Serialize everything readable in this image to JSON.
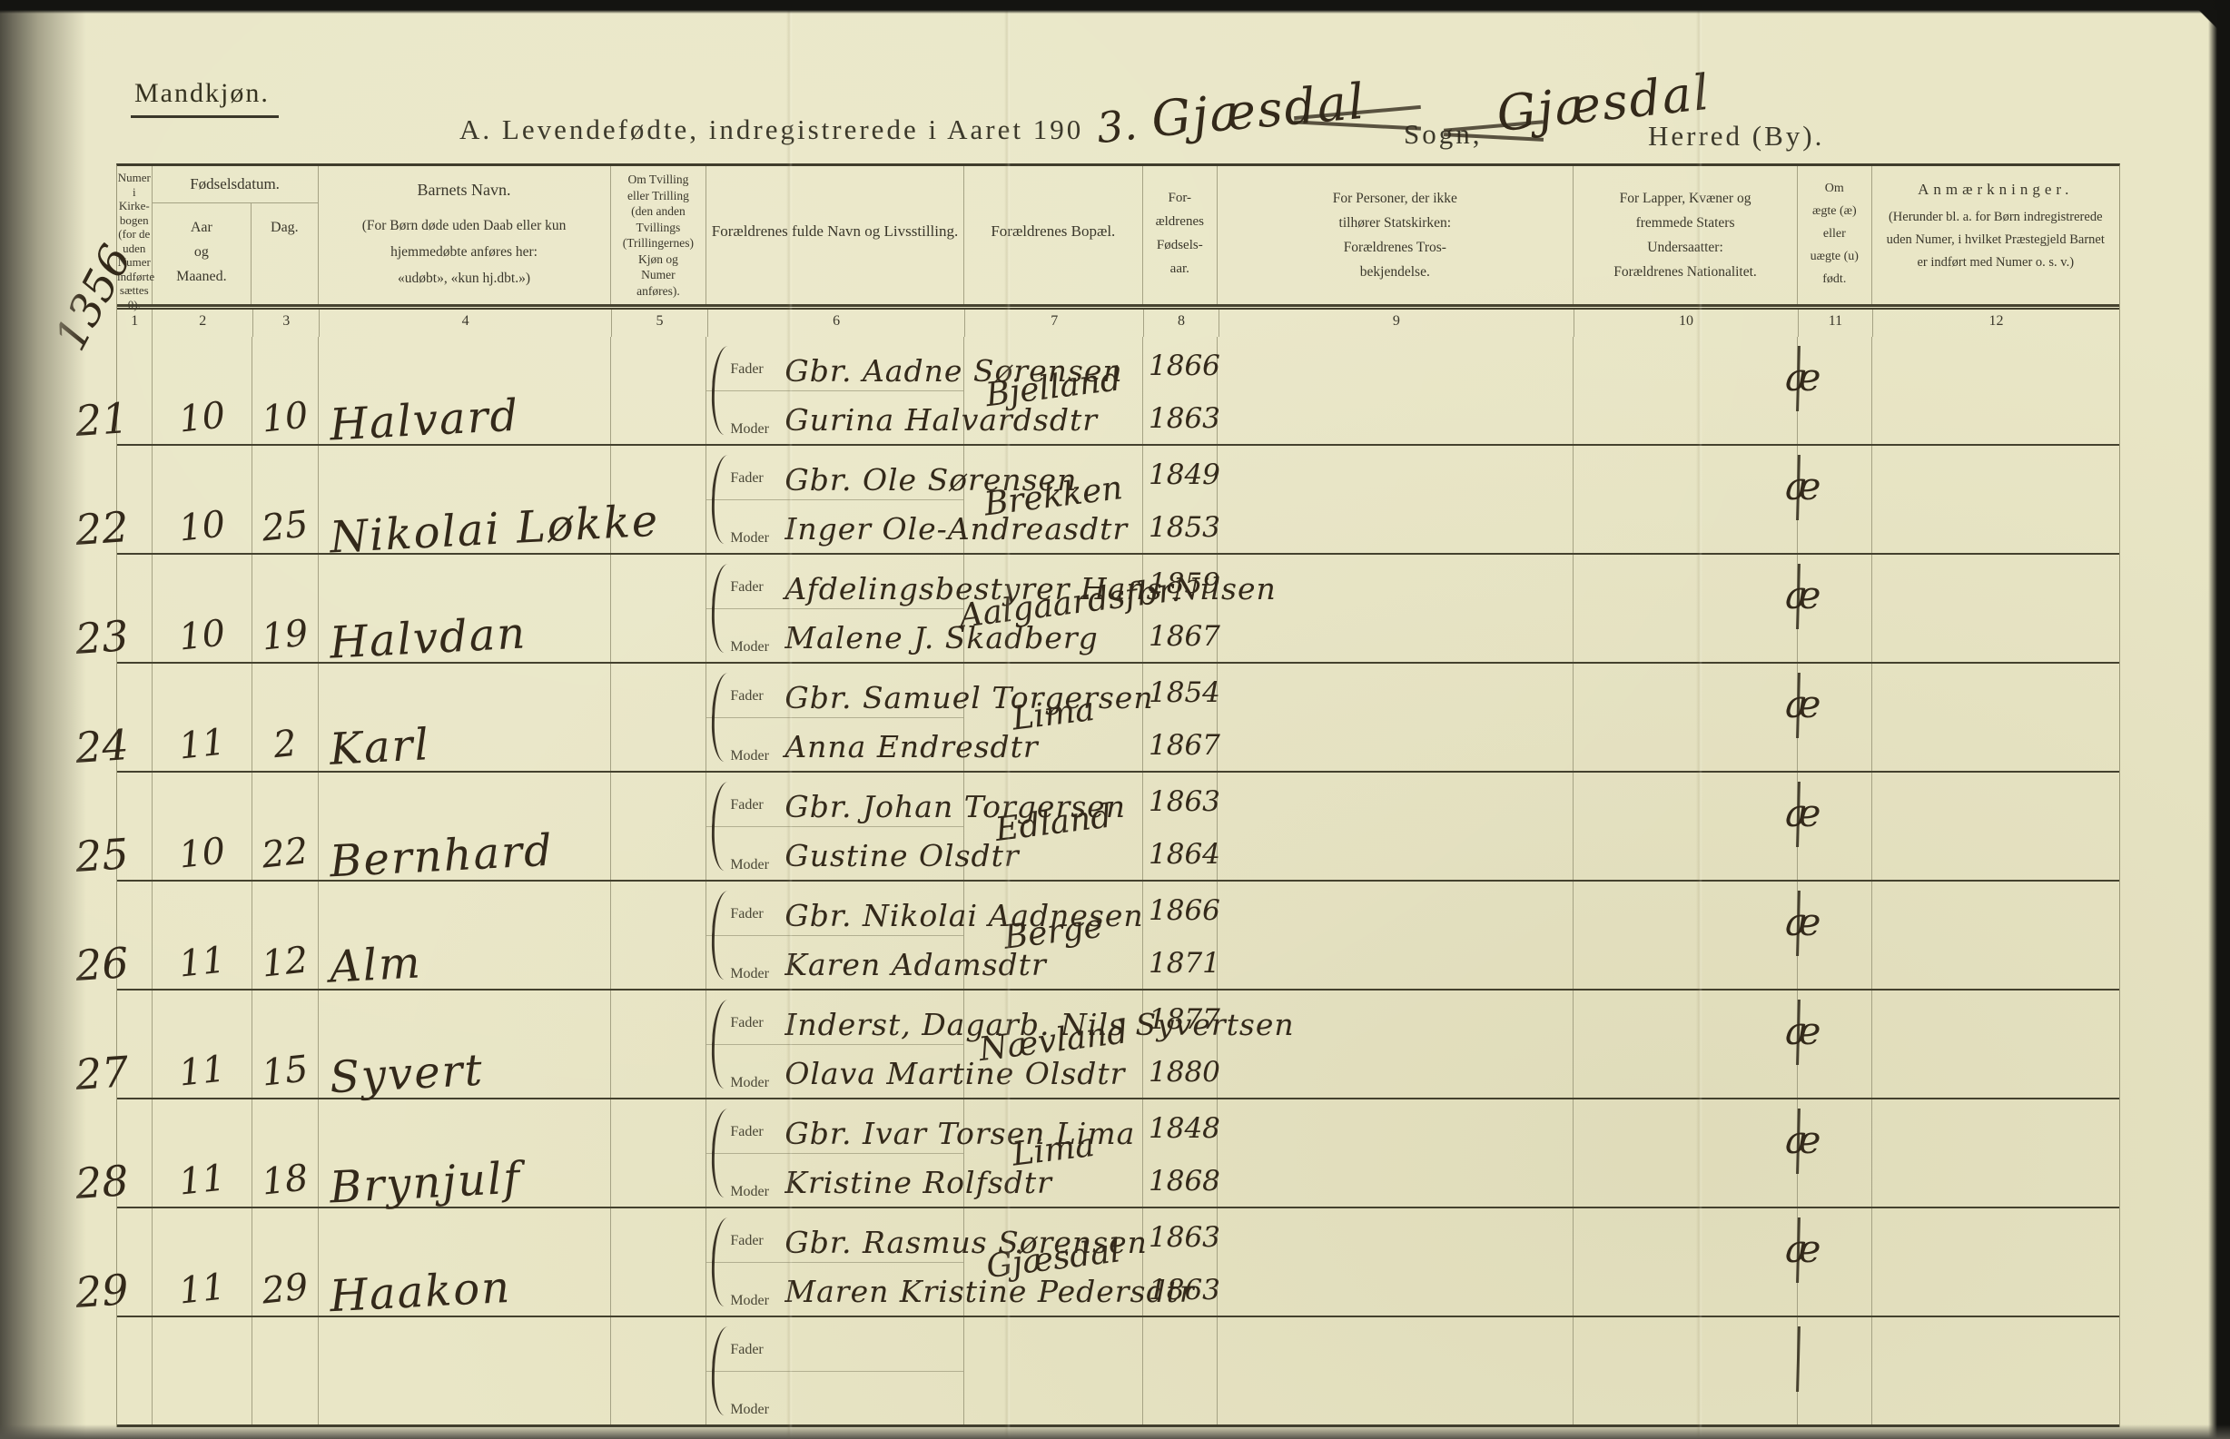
{
  "page": {
    "corner_label": "Mandkjøn.",
    "margin_number": "1356",
    "title": {
      "printed": "A.  Levendefødte, indregistrerede i Aaret 190",
      "year_handwritten": "3.",
      "sogn_handwritten": "Gjæsdal",
      "sogn_label": "Sogn,",
      "herred_handwritten": "Gjæsdal",
      "herred_label": "Herred (By)."
    }
  },
  "table": {
    "headers": {
      "col1": "Numer\ni Kirke-\nbogen\n(for de\nuden\nNumer\nindførte\nsættes\n0).",
      "fodselsdatum_group": "Fødselsdatum.",
      "col2": "Aar\nog\nMaaned.",
      "col3": "Dag.",
      "col4_title": "Barnets Navn.",
      "col4_sub": "(For Børn døde uden Daab eller kun\nhjemmedøbte anføres her:\n«udøbt», «kun hj.dbt.»)",
      "col5": "Om Tvilling\neller Trilling\n(den anden\nTvillings\n(Trillingernes)\nKjøn og\nNumer\nanføres).",
      "col6": "Forældrenes fulde Navn og Livsstilling.",
      "col7": "Forældrenes Bopæl.",
      "col8": "For-\nældrenes\nFødsels-\naar.",
      "col9": "For Personer, der ikke\ntilhører Statskirken:\nForældrenes Tros-\nbekjendelse.",
      "col10": "For Lapper, Kvæner og\nfremmede Staters\nUndersaatter:\nForældrenes Nationalitet.",
      "col11": "Om\nægte (æ)\neller\nuægte (u)\nfødt.",
      "col12_title": "Anmærkninger.",
      "col12_sub": "(Herunder bl. a. for Børn indregistrerede\nuden Numer, i hvilket Præstegjeld Barnet\ner indført med Numer o. s. v.)"
    },
    "column_numbers": [
      "1",
      "2",
      "3",
      "4",
      "5",
      "6",
      "7",
      "8",
      "9",
      "10",
      "11",
      "12"
    ],
    "row_labels": {
      "fader": "Fader",
      "moder": "Moder"
    },
    "rows": [
      {
        "nr": "21",
        "maaned": "10",
        "dag": "10",
        "navn": "Halvard",
        "fader": "Gbr. Aadne Sørensen",
        "moder": "Gurina Halvardsdtr",
        "bopael": "Bjelland",
        "fader_aar": "1866",
        "moder_aar": "1863",
        "fodt": "æ"
      },
      {
        "nr": "22",
        "maaned": "10",
        "dag": "25",
        "navn": "Nikolai Løkke",
        "fader": "Gbr. Ole Sørensen",
        "moder": "Inger Ole-Andreasdtr",
        "bopael": "Brekken",
        "fader_aar": "1849",
        "moder_aar": "1853",
        "fodt": "æ"
      },
      {
        "nr": "23",
        "maaned": "10",
        "dag": "19",
        "navn": "Halvdan",
        "fader": "Afdelingsbestyrer Hans Nilsen",
        "moder": "Malene J. Skadberg",
        "bopael": "Aalgaardsfbr.",
        "fader_aar": "1859",
        "moder_aar": "1867",
        "fodt": "æ"
      },
      {
        "nr": "24",
        "maaned": "11",
        "dag": "2",
        "navn": "Karl",
        "fader": "Gbr. Samuel Torgersen",
        "moder": "Anna Endresdtr",
        "bopael": "Lima",
        "fader_aar": "1854",
        "moder_aar": "1867",
        "fodt": "æ"
      },
      {
        "nr": "25",
        "maaned": "10",
        "dag": "22",
        "navn": "Bernhard",
        "fader": "Gbr. Johan Torgersen",
        "moder": "Gustine Olsdtr",
        "bopael": "Edland",
        "fader_aar": "1863",
        "moder_aar": "1864",
        "fodt": "æ"
      },
      {
        "nr": "26",
        "maaned": "11",
        "dag": "12",
        "navn": "Alm",
        "fader": "Gbr. Nikolai Aadnesen",
        "moder": "Karen Adamsdtr",
        "bopael": "Berge",
        "fader_aar": "1866",
        "moder_aar": "1871",
        "fodt": "æ"
      },
      {
        "nr": "27",
        "maaned": "11",
        "dag": "15",
        "navn": "Syvert",
        "fader": "Inderst, Dagarb. Nils Syvertsen",
        "moder": "Olava Martine Olsdtr",
        "bopael": "Nævland",
        "fader_aar": "1877",
        "moder_aar": "1880",
        "fodt": "æ"
      },
      {
        "nr": "28",
        "maaned": "11",
        "dag": "18",
        "navn": "Brynjulf",
        "fader": "Gbr. Ivar Torsen Lima",
        "moder": "Kristine Rolfsdtr",
        "bopael": "Lima",
        "fader_aar": "1848",
        "moder_aar": "1868",
        "fodt": "æ"
      },
      {
        "nr": "29",
        "maaned": "11",
        "dag": "29",
        "navn": "Haakon",
        "fader": "Gbr. Rasmus Sørensen",
        "moder": "Maren Kristine Pedersdtr",
        "bopael": "Gjæsdal",
        "fader_aar": "1863",
        "moder_aar": "1863",
        "fodt": "æ"
      },
      {
        "nr": "",
        "maaned": "",
        "dag": "",
        "navn": "",
        "fader": "",
        "moder": "",
        "bopael": "",
        "fader_aar": "",
        "moder_aar": "",
        "fodt": ""
      }
    ]
  }
}
